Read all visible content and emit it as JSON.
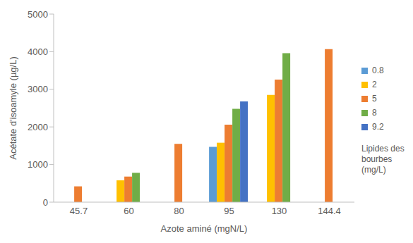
{
  "chart_data": {
    "type": "bar",
    "x_label": "Azote aminé (mgN/L)",
    "y_label": "Acétate d'isoamyle (µg/L)",
    "legend_title": "Lipides des bourbes (mg/L)",
    "legend": "right",
    "grid": false,
    "categories": [
      "45.7",
      "60",
      "80",
      "95",
      "130",
      "144.4"
    ],
    "ylim": [
      0,
      5000
    ],
    "yticks": [
      0,
      1000,
      2000,
      3000,
      4000,
      5000
    ],
    "series": [
      {
        "name": "0.8",
        "color": "#5B9BD5",
        "values": [
          null,
          null,
          null,
          1470,
          null,
          null
        ]
      },
      {
        "name": "2",
        "color": "#FFC000",
        "values": [
          null,
          580,
          null,
          1580,
          2850,
          null
        ]
      },
      {
        "name": "5",
        "color": "#ED7D31",
        "values": [
          420,
          680,
          1550,
          2060,
          3260,
          4070
        ]
      },
      {
        "name": "8",
        "color": "#70AD47",
        "values": [
          null,
          780,
          null,
          2480,
          3960,
          null
        ]
      },
      {
        "name": "9.2",
        "color": "#4472C4",
        "values": [
          null,
          null,
          null,
          2680,
          null,
          null
        ]
      }
    ]
  }
}
